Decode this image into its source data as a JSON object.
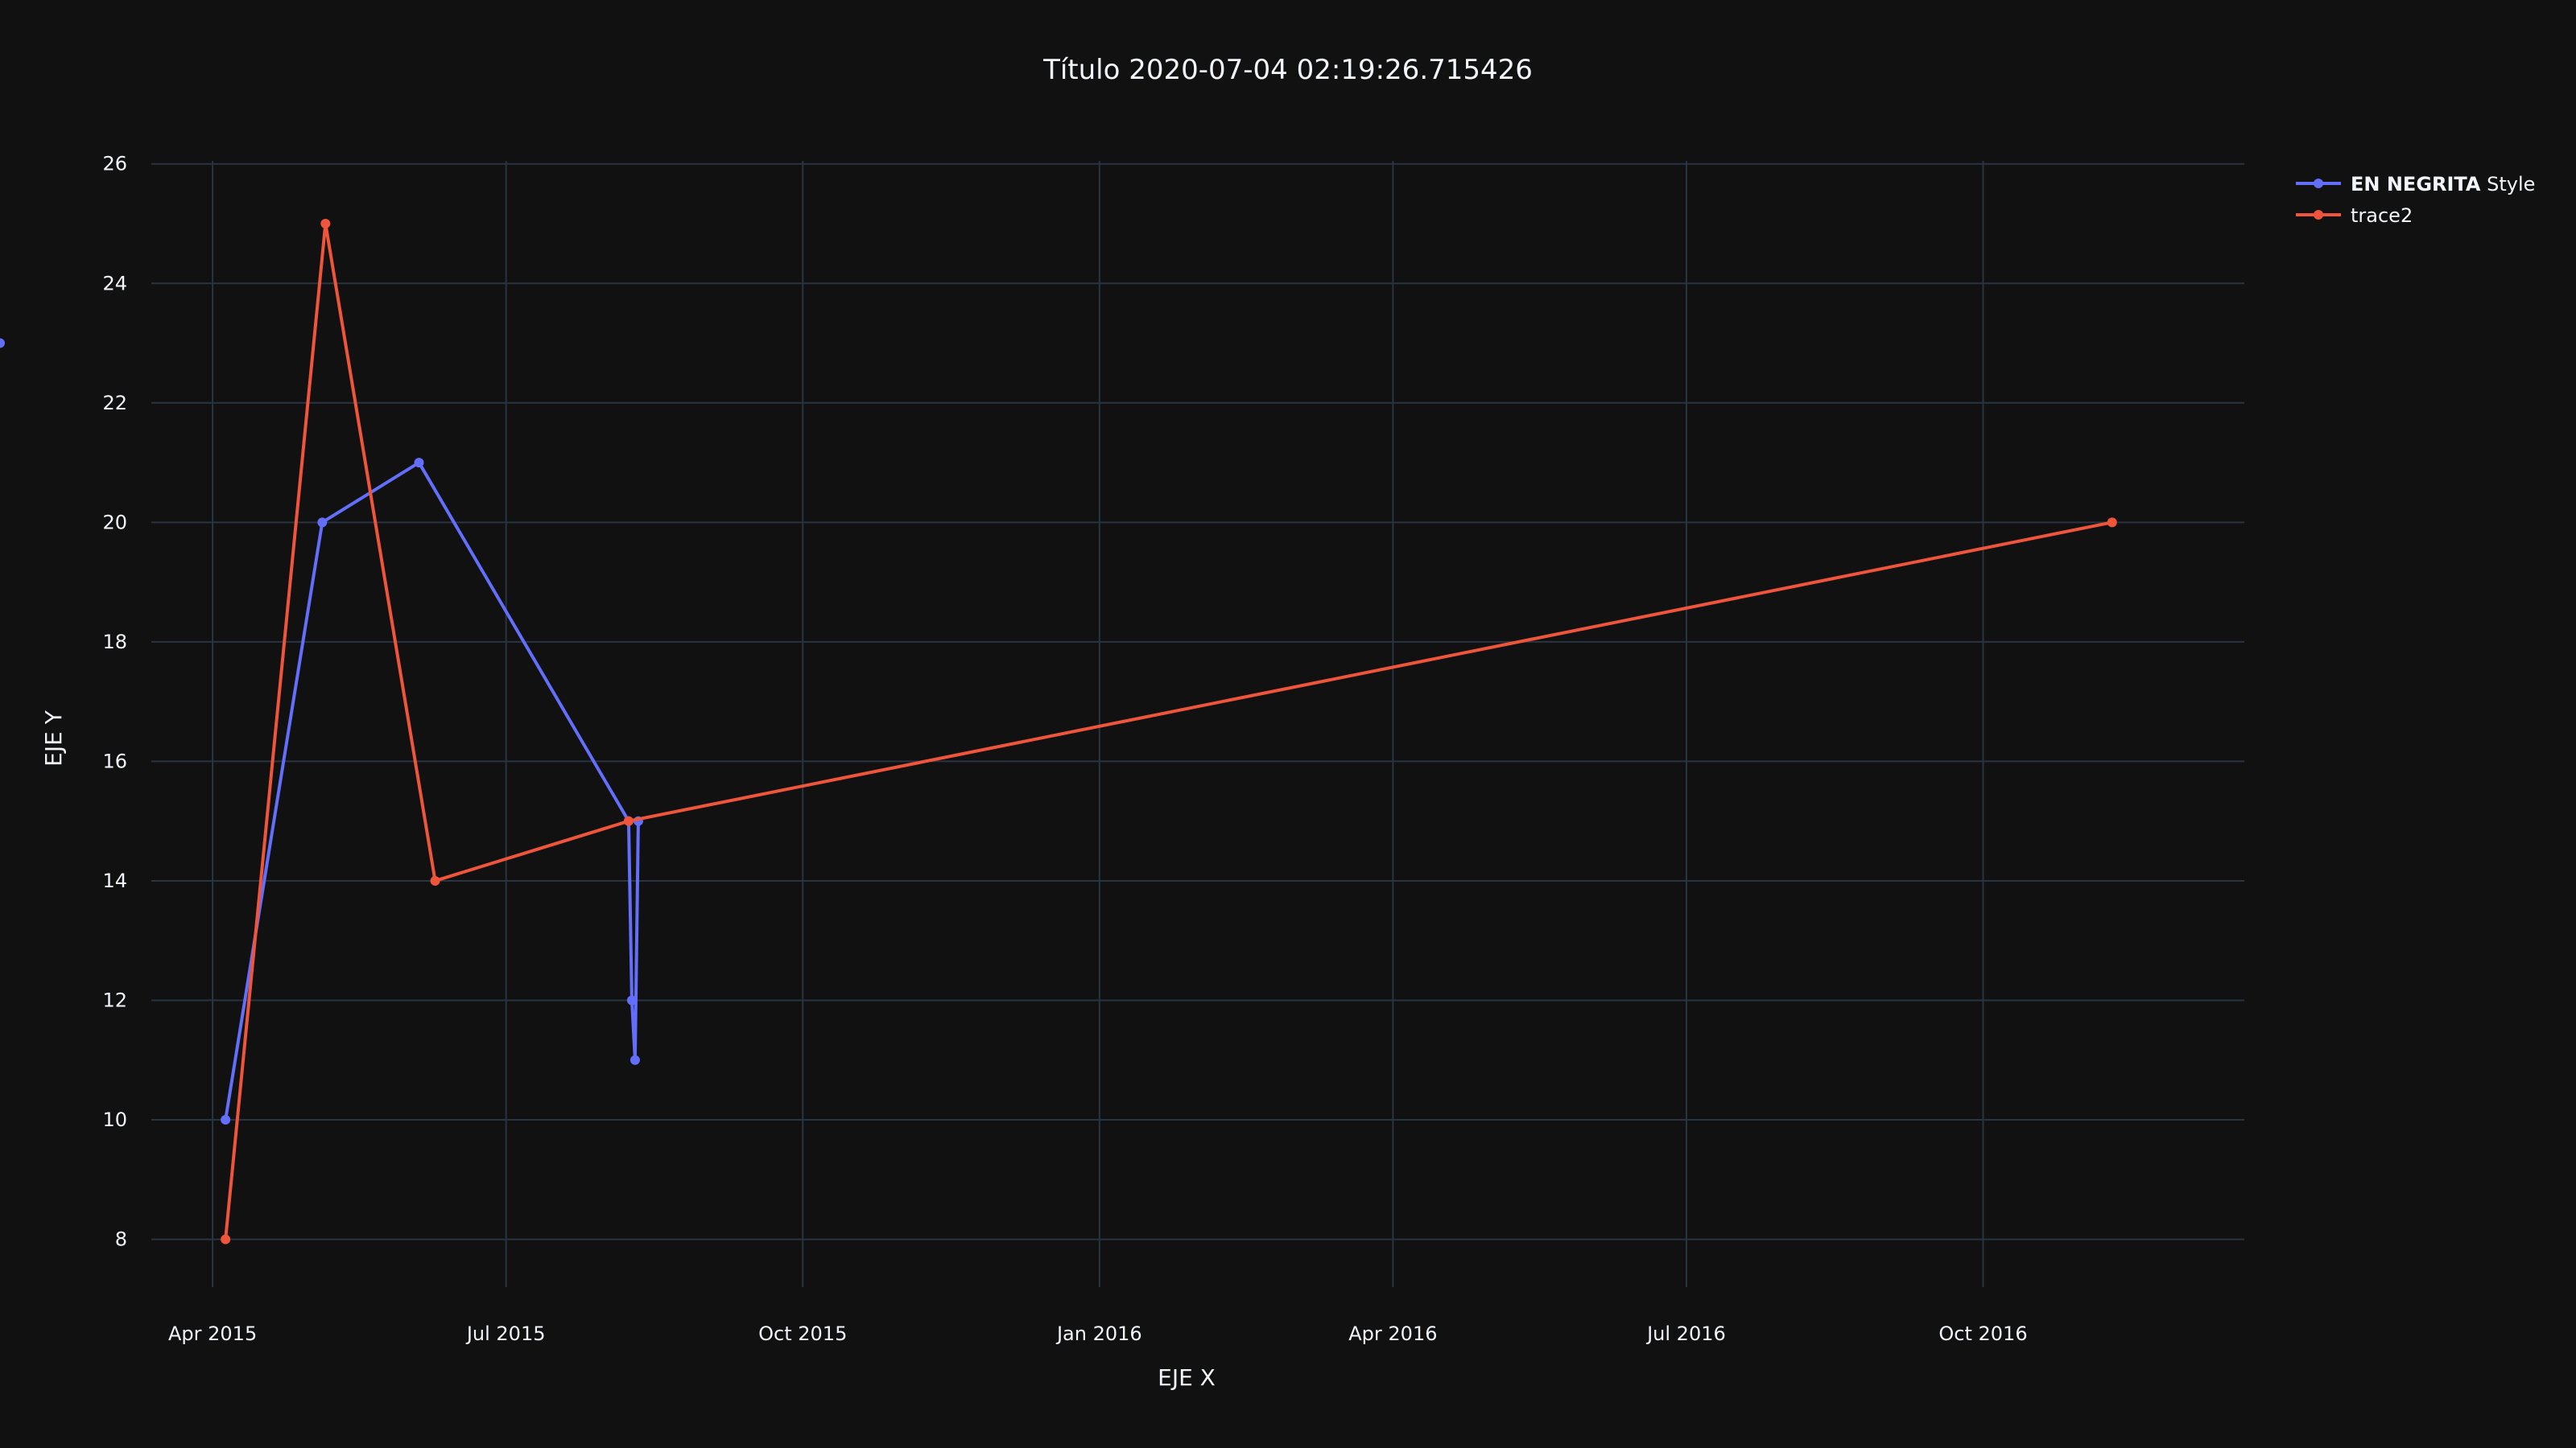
{
  "chart_data": {
    "type": "line",
    "title": "Título 2020-07-04 02:19:26.715426",
    "xlabel": "EJE X",
    "ylabel": "EJE Y",
    "x_axis_type": "date",
    "xlim": [
      "2015-03-13",
      "2016-12-21"
    ],
    "ylim": [
      7.2,
      26.05
    ],
    "x_ticks": [
      {
        "date": "2015-04-01",
        "label": "Apr 2015"
      },
      {
        "date": "2015-07-01",
        "label": "Jul 2015"
      },
      {
        "date": "2015-10-01",
        "label": "Oct 2015"
      },
      {
        "date": "2016-01-01",
        "label": "Jan 2016"
      },
      {
        "date": "2016-04-01",
        "label": "Apr 2016"
      },
      {
        "date": "2016-07-01",
        "label": "Jul 2016"
      },
      {
        "date": "2016-10-01",
        "label": "Oct 2016"
      }
    ],
    "y_ticks": [
      8,
      10,
      12,
      14,
      16,
      18,
      20,
      22,
      24,
      26
    ],
    "grid": true,
    "legend_position": "top-right",
    "series": [
      {
        "name_bold": "EN NEGRITA",
        "name_rest": " Style",
        "color": "#636efa",
        "x": [
          "2015-04-05",
          "2015-05-05",
          "2015-06-04",
          "2015-08-08",
          "2015-08-09",
          "2015-08-10",
          "2015-08-11",
          "2016-04-35"
        ],
        "y": [
          10,
          20,
          21,
          15,
          12,
          11,
          15,
          23
        ]
      },
      {
        "name": "trace2",
        "color": "#ef553b",
        "x": [
          "2015-04-05",
          "2015-05-06",
          "2015-06-09",
          "2015-08-08",
          "2016-11-10"
        ],
        "y": [
          8,
          25,
          14,
          15,
          20
        ]
      }
    ]
  }
}
